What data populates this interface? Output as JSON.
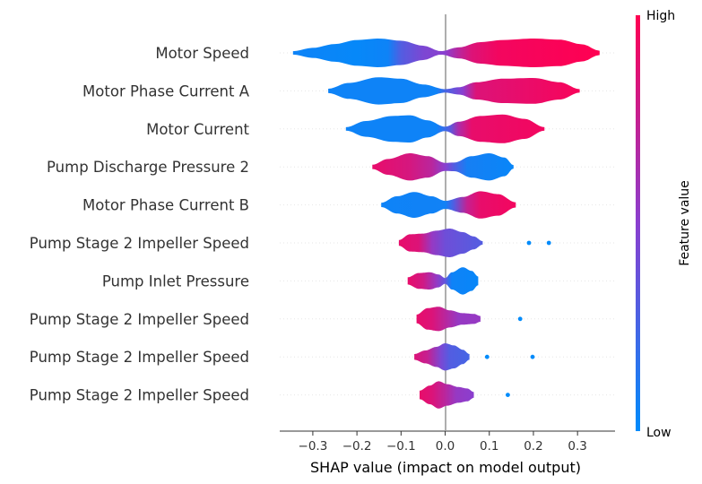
{
  "chart_data": {
    "type": "violin",
    "title": "",
    "xlabel": "SHAP value (impact on model output)",
    "xlim": [
      -0.375,
      0.385
    ],
    "xticks": [
      -0.3,
      -0.2,
      -0.1,
      0.0,
      0.1,
      0.2,
      0.3
    ],
    "xtick_labels": [
      "−0.3",
      "−0.2",
      "−0.1",
      "0.0",
      "0.1",
      "0.2",
      "0.3"
    ],
    "colorbar": {
      "label": "Feature value",
      "high_label": "High",
      "low_label": "Low",
      "low_color": "#008bfb",
      "mid_color": "#8a3fcf",
      "high_color": "#ff0052"
    },
    "features": [
      {
        "name": "Motor Speed",
        "min": -0.345,
        "max": 0.35,
        "density": [
          [
            -0.345,
            0.12
          ],
          [
            -0.3,
            0.35
          ],
          [
            -0.25,
            0.62
          ],
          [
            -0.2,
            0.9
          ],
          [
            -0.15,
            1.0
          ],
          [
            -0.1,
            0.85
          ],
          [
            -0.05,
            0.5
          ],
          [
            -0.01,
            0.12
          ],
          [
            0.03,
            0.38
          ],
          [
            0.08,
            0.75
          ],
          [
            0.13,
            0.9
          ],
          [
            0.2,
            1.0
          ],
          [
            0.26,
            0.92
          ],
          [
            0.31,
            0.6
          ],
          [
            0.35,
            0.15
          ]
        ],
        "colors": [
          [
            -0.345,
            0.05
          ],
          [
            -0.2,
            0.02
          ],
          [
            -0.13,
            0.05
          ],
          [
            -0.1,
            0.3
          ],
          [
            -0.05,
            0.45
          ],
          [
            0.0,
            0.5
          ],
          [
            0.03,
            0.7
          ],
          [
            0.06,
            0.85
          ],
          [
            0.12,
            0.95
          ],
          [
            0.35,
            1.0
          ]
        ],
        "outliers": []
      },
      {
        "name": "Motor Phase Current A",
        "min": -0.265,
        "max": 0.305,
        "density": [
          [
            -0.265,
            0.15
          ],
          [
            -0.22,
            0.55
          ],
          [
            -0.15,
            0.95
          ],
          [
            -0.1,
            0.85
          ],
          [
            -0.05,
            0.45
          ],
          [
            0.0,
            0.12
          ],
          [
            0.03,
            0.25
          ],
          [
            0.07,
            0.6
          ],
          [
            0.13,
            0.85
          ],
          [
            0.2,
            0.9
          ],
          [
            0.26,
            0.6
          ],
          [
            0.305,
            0.12
          ]
        ],
        "colors": [
          [
            -0.265,
            0.05
          ],
          [
            -0.02,
            0.05
          ],
          [
            0.0,
            0.25
          ],
          [
            0.04,
            0.5
          ],
          [
            0.07,
            0.85
          ],
          [
            0.305,
            0.97
          ]
        ],
        "outliers": []
      },
      {
        "name": "Motor Current",
        "min": -0.225,
        "max": 0.225,
        "density": [
          [
            -0.225,
            0.12
          ],
          [
            -0.18,
            0.55
          ],
          [
            -0.12,
            0.9
          ],
          [
            -0.08,
            0.95
          ],
          [
            -0.04,
            0.6
          ],
          [
            0.0,
            0.15
          ],
          [
            0.03,
            0.5
          ],
          [
            0.08,
            0.9
          ],
          [
            0.13,
            1.0
          ],
          [
            0.18,
            0.7
          ],
          [
            0.225,
            0.12
          ]
        ],
        "colors": [
          [
            -0.225,
            0.05
          ],
          [
            -0.02,
            0.05
          ],
          [
            0.01,
            0.3
          ],
          [
            0.03,
            0.65
          ],
          [
            0.06,
            0.9
          ],
          [
            0.225,
            0.95
          ]
        ],
        "outliers": []
      },
      {
        "name": "Pump Discharge Pressure 2",
        "min": -0.165,
        "max": 0.155,
        "density": [
          [
            -0.165,
            0.15
          ],
          [
            -0.13,
            0.55
          ],
          [
            -0.08,
            0.95
          ],
          [
            -0.04,
            0.75
          ],
          [
            0.0,
            0.28
          ],
          [
            0.02,
            0.3
          ],
          [
            0.06,
            0.75
          ],
          [
            0.1,
            0.95
          ],
          [
            0.135,
            0.65
          ],
          [
            0.155,
            0.12
          ]
        ],
        "colors": [
          [
            -0.165,
            0.9
          ],
          [
            -0.08,
            0.82
          ],
          [
            -0.03,
            0.7
          ],
          [
            0.0,
            0.5
          ],
          [
            0.02,
            0.3
          ],
          [
            0.05,
            0.08
          ],
          [
            0.155,
            0.03
          ]
        ],
        "outliers": []
      },
      {
        "name": "Motor Phase Current B",
        "min": -0.145,
        "max": 0.16,
        "density": [
          [
            -0.145,
            0.15
          ],
          [
            -0.11,
            0.6
          ],
          [
            -0.07,
            0.9
          ],
          [
            -0.03,
            0.6
          ],
          [
            0.0,
            0.28
          ],
          [
            0.04,
            0.55
          ],
          [
            0.08,
            0.95
          ],
          [
            0.12,
            0.75
          ],
          [
            0.16,
            0.18
          ]
        ],
        "colors": [
          [
            -0.145,
            0.05
          ],
          [
            0.0,
            0.06
          ],
          [
            0.02,
            0.3
          ],
          [
            0.05,
            0.75
          ],
          [
            0.08,
            0.9
          ],
          [
            0.16,
            0.95
          ]
        ],
        "outliers": []
      },
      {
        "name": "Pump Stage 2 Impeller Speed",
        "min": -0.105,
        "max": 0.085,
        "density": [
          [
            -0.105,
            0.2
          ],
          [
            -0.08,
            0.6
          ],
          [
            -0.05,
            0.65
          ],
          [
            -0.02,
            0.85
          ],
          [
            0.01,
            1.0
          ],
          [
            0.04,
            0.75
          ],
          [
            0.065,
            0.45
          ],
          [
            0.085,
            0.12
          ]
        ],
        "colors": [
          [
            -0.105,
            0.9
          ],
          [
            -0.06,
            0.85
          ],
          [
            -0.03,
            0.55
          ],
          [
            0.0,
            0.4
          ],
          [
            0.04,
            0.35
          ],
          [
            0.085,
            0.3
          ]
        ],
        "outliers": [
          0.19,
          0.235
        ]
      },
      {
        "name": "Pump Inlet Pressure",
        "min": -0.085,
        "max": 0.075,
        "density": [
          [
            -0.085,
            0.25
          ],
          [
            -0.06,
            0.55
          ],
          [
            -0.035,
            0.6
          ],
          [
            -0.015,
            0.45
          ],
          [
            0.0,
            0.2
          ],
          [
            0.015,
            0.6
          ],
          [
            0.04,
            0.95
          ],
          [
            0.06,
            0.7
          ],
          [
            0.075,
            0.3
          ]
        ],
        "colors": [
          [
            -0.085,
            0.9
          ],
          [
            -0.05,
            0.8
          ],
          [
            -0.02,
            0.55
          ],
          [
            0.0,
            0.35
          ],
          [
            0.015,
            0.05
          ],
          [
            0.075,
            0.03
          ]
        ],
        "outliers": []
      },
      {
        "name": "Pump Stage 2 Impeller Speed",
        "min": -0.065,
        "max": 0.08,
        "density": [
          [
            -0.065,
            0.3
          ],
          [
            -0.04,
            0.75
          ],
          [
            -0.015,
            0.85
          ],
          [
            0.01,
            0.6
          ],
          [
            0.04,
            0.4
          ],
          [
            0.065,
            0.35
          ],
          [
            0.08,
            0.2
          ]
        ],
        "colors": [
          [
            -0.065,
            0.9
          ],
          [
            -0.03,
            0.85
          ],
          [
            0.0,
            0.7
          ],
          [
            0.03,
            0.55
          ],
          [
            0.08,
            0.55
          ]
        ],
        "outliers": [
          0.17
        ]
      },
      {
        "name": "Pump Stage 2 Impeller Speed",
        "min": -0.07,
        "max": 0.055,
        "density": [
          [
            -0.07,
            0.2
          ],
          [
            -0.045,
            0.45
          ],
          [
            -0.02,
            0.7
          ],
          [
            0.0,
            0.95
          ],
          [
            0.02,
            0.8
          ],
          [
            0.04,
            0.5
          ],
          [
            0.055,
            0.2
          ]
        ],
        "colors": [
          [
            -0.07,
            0.85
          ],
          [
            -0.04,
            0.75
          ],
          [
            -0.01,
            0.45
          ],
          [
            0.01,
            0.3
          ],
          [
            0.055,
            0.25
          ]
        ],
        "outliers": [
          0.095,
          0.198
        ]
      },
      {
        "name": "Pump Stage 2 Impeller Speed",
        "min": -0.058,
        "max": 0.065,
        "density": [
          [
            -0.058,
            0.3
          ],
          [
            -0.035,
            0.65
          ],
          [
            -0.015,
            0.95
          ],
          [
            0.005,
            0.75
          ],
          [
            0.03,
            0.55
          ],
          [
            0.05,
            0.45
          ],
          [
            0.065,
            0.2
          ]
        ],
        "colors": [
          [
            -0.058,
            0.9
          ],
          [
            -0.03,
            0.85
          ],
          [
            0.0,
            0.7
          ],
          [
            0.025,
            0.55
          ],
          [
            0.065,
            0.5
          ]
        ],
        "outliers": [
          0.142
        ]
      }
    ]
  }
}
